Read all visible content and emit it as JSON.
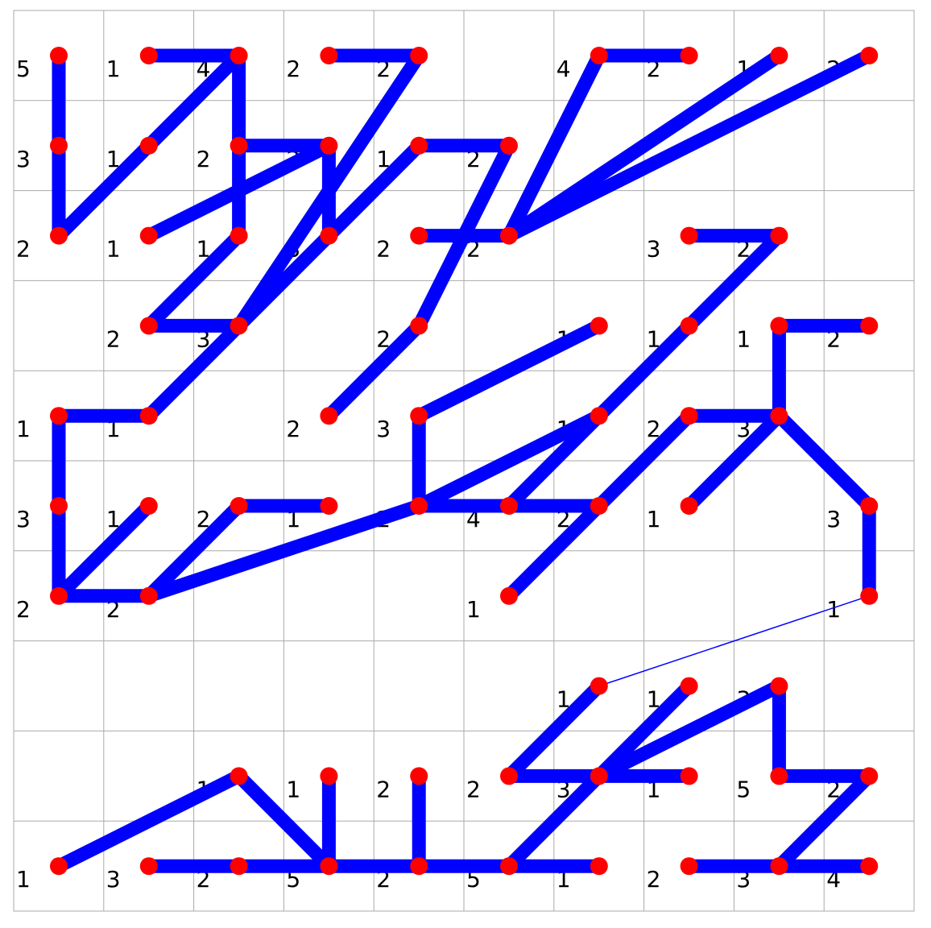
{
  "puzzle": {
    "rows": 10,
    "cols": 10,
    "colors": {
      "line": "#0000ff",
      "node": "#ff0000",
      "grid": "#aaaaaa",
      "text": "#000000"
    },
    "clues": [
      [
        "5",
        "1",
        "4",
        "2",
        "2",
        "",
        "4",
        "2",
        "1",
        "2"
      ],
      [
        "3",
        "1",
        "2",
        "2",
        "1",
        "2",
        "",
        "",
        "",
        ""
      ],
      [
        "2",
        "1",
        "1",
        "3",
        "2",
        "2",
        "",
        "3",
        "2",
        ""
      ],
      [
        "",
        "2",
        "3",
        "",
        "2",
        "",
        "1",
        "1",
        "1",
        "2"
      ],
      [
        "1",
        "1",
        "",
        "2",
        "3",
        "",
        "1",
        "2",
        "3",
        ""
      ],
      [
        "3",
        "1",
        "2",
        "1",
        "2",
        "4",
        "2",
        "1",
        "",
        "3"
      ],
      [
        "2",
        "2",
        "",
        "",
        "",
        "1",
        "",
        "",
        "",
        "1"
      ],
      [
        "",
        "",
        "",
        "",
        "",
        "",
        "1",
        "1",
        "3",
        ""
      ],
      [
        "",
        "",
        "1",
        "1",
        "2",
        "2",
        "3",
        "1",
        "5",
        "2"
      ],
      [
        "1",
        "3",
        "2",
        "5",
        "2",
        "5",
        "1",
        "2",
        "3",
        "4"
      ]
    ],
    "nodes": [
      [
        0,
        0
      ],
      [
        1,
        0
      ],
      [
        2,
        0
      ],
      [
        3,
        0
      ],
      [
        4,
        0
      ],
      [
        6,
        0
      ],
      [
        7,
        0
      ],
      [
        8,
        0
      ],
      [
        9,
        0
      ],
      [
        0,
        1
      ],
      [
        1,
        1
      ],
      [
        2,
        1
      ],
      [
        3,
        1
      ],
      [
        4,
        1
      ],
      [
        5,
        1
      ],
      [
        0,
        2
      ],
      [
        1,
        2
      ],
      [
        2,
        2
      ],
      [
        3,
        2
      ],
      [
        4,
        2
      ],
      [
        5,
        2
      ],
      [
        7,
        2
      ],
      [
        8,
        2
      ],
      [
        1,
        3
      ],
      [
        2,
        3
      ],
      [
        4,
        3
      ],
      [
        6,
        3
      ],
      [
        7,
        3
      ],
      [
        8,
        3
      ],
      [
        9,
        3
      ],
      [
        0,
        4
      ],
      [
        1,
        4
      ],
      [
        3,
        4
      ],
      [
        4,
        4
      ],
      [
        6,
        4
      ],
      [
        7,
        4
      ],
      [
        8,
        4
      ],
      [
        0,
        5
      ],
      [
        1,
        5
      ],
      [
        2,
        5
      ],
      [
        3,
        5
      ],
      [
        4,
        5
      ],
      [
        5,
        5
      ],
      [
        6,
        5
      ],
      [
        7,
        5
      ],
      [
        9,
        5
      ],
      [
        0,
        6
      ],
      [
        1,
        6
      ],
      [
        5,
        6
      ],
      [
        9,
        6
      ],
      [
        6,
        7
      ],
      [
        7,
        7
      ],
      [
        8,
        7
      ],
      [
        2,
        8
      ],
      [
        3,
        8
      ],
      [
        4,
        8
      ],
      [
        5,
        8
      ],
      [
        6,
        8
      ],
      [
        7,
        8
      ],
      [
        8,
        8
      ],
      [
        9,
        8
      ],
      [
        0,
        9
      ],
      [
        1,
        9
      ],
      [
        2,
        9
      ],
      [
        3,
        9
      ],
      [
        4,
        9
      ],
      [
        5,
        9
      ],
      [
        6,
        9
      ],
      [
        7,
        9
      ],
      [
        8,
        9
      ],
      [
        9,
        9
      ]
    ],
    "edges": [
      [
        0,
        0,
        0,
        2,
        1
      ],
      [
        0,
        2,
        2,
        0,
        1
      ],
      [
        1,
        0,
        2,
        0,
        1
      ],
      [
        2,
        0,
        2,
        2,
        1
      ],
      [
        2,
        1,
        3,
        1,
        1
      ],
      [
        3,
        1,
        3,
        2,
        1
      ],
      [
        3,
        1,
        1,
        2,
        1
      ],
      [
        4,
        0,
        3,
        0,
        1
      ],
      [
        4,
        0,
        2,
        3,
        1
      ],
      [
        1,
        3,
        2,
        3,
        1
      ],
      [
        2,
        2,
        1,
        3,
        1
      ],
      [
        3,
        2,
        4,
        1,
        1
      ],
      [
        4,
        1,
        5,
        1,
        1
      ],
      [
        3,
        2,
        2,
        3,
        1
      ],
      [
        2,
        3,
        1,
        4,
        1
      ],
      [
        1,
        4,
        0,
        4,
        1
      ],
      [
        0,
        4,
        0,
        6,
        1
      ],
      [
        0,
        6,
        1,
        6,
        1
      ],
      [
        1,
        5,
        0,
        6,
        1
      ],
      [
        1,
        6,
        2,
        5,
        1
      ],
      [
        2,
        5,
        3,
        5,
        1
      ],
      [
        1,
        6,
        4,
        5,
        1
      ],
      [
        4,
        5,
        6,
        4,
        1
      ],
      [
        4,
        5,
        4,
        4,
        1
      ],
      [
        4,
        4,
        6,
        3,
        1
      ],
      [
        3,
        4,
        4,
        3,
        1
      ],
      [
        4,
        3,
        5,
        1,
        1
      ],
      [
        4,
        2,
        5,
        2,
        1
      ],
      [
        5,
        2,
        6,
        0,
        1
      ],
      [
        6,
        0,
        7,
        0,
        1
      ],
      [
        5,
        2,
        8,
        0,
        1
      ],
      [
        5,
        2,
        9,
        0,
        1
      ],
      [
        5,
        2,
        6,
        0,
        1
      ],
      [
        4,
        5,
        6,
        5,
        1
      ],
      [
        5,
        5,
        7,
        3,
        1
      ],
      [
        7,
        3,
        8,
        2,
        1
      ],
      [
        7,
        2,
        8,
        2,
        1
      ],
      [
        6,
        5,
        7,
        4,
        1
      ],
      [
        5,
        6,
        6,
        5,
        1
      ],
      [
        7,
        4,
        8,
        4,
        1
      ],
      [
        7,
        5,
        8,
        4,
        1
      ],
      [
        8,
        4,
        8,
        3,
        1
      ],
      [
        8,
        3,
        9,
        3,
        1
      ],
      [
        8,
        4,
        9,
        5,
        1
      ],
      [
        9,
        5,
        9,
        6,
        1
      ],
      [
        9,
        6,
        6,
        7,
        0
      ],
      [
        6,
        7,
        5,
        8,
        1
      ],
      [
        5,
        8,
        7,
        8,
        1
      ],
      [
        6,
        8,
        7,
        7,
        1
      ],
      [
        6,
        8,
        8,
        7,
        1
      ],
      [
        8,
        7,
        8,
        8,
        1
      ],
      [
        8,
        8,
        9,
        8,
        1
      ],
      [
        9,
        8,
        8,
        9,
        1
      ],
      [
        7,
        9,
        9,
        9,
        1
      ],
      [
        0,
        9,
        2,
        8,
        1
      ],
      [
        2,
        8,
        3,
        9,
        1
      ],
      [
        3,
        8,
        3,
        9,
        1
      ],
      [
        1,
        9,
        6,
        9,
        1
      ],
      [
        4,
        8,
        4,
        9,
        1
      ],
      [
        5,
        9,
        6,
        8,
        1
      ]
    ]
  }
}
